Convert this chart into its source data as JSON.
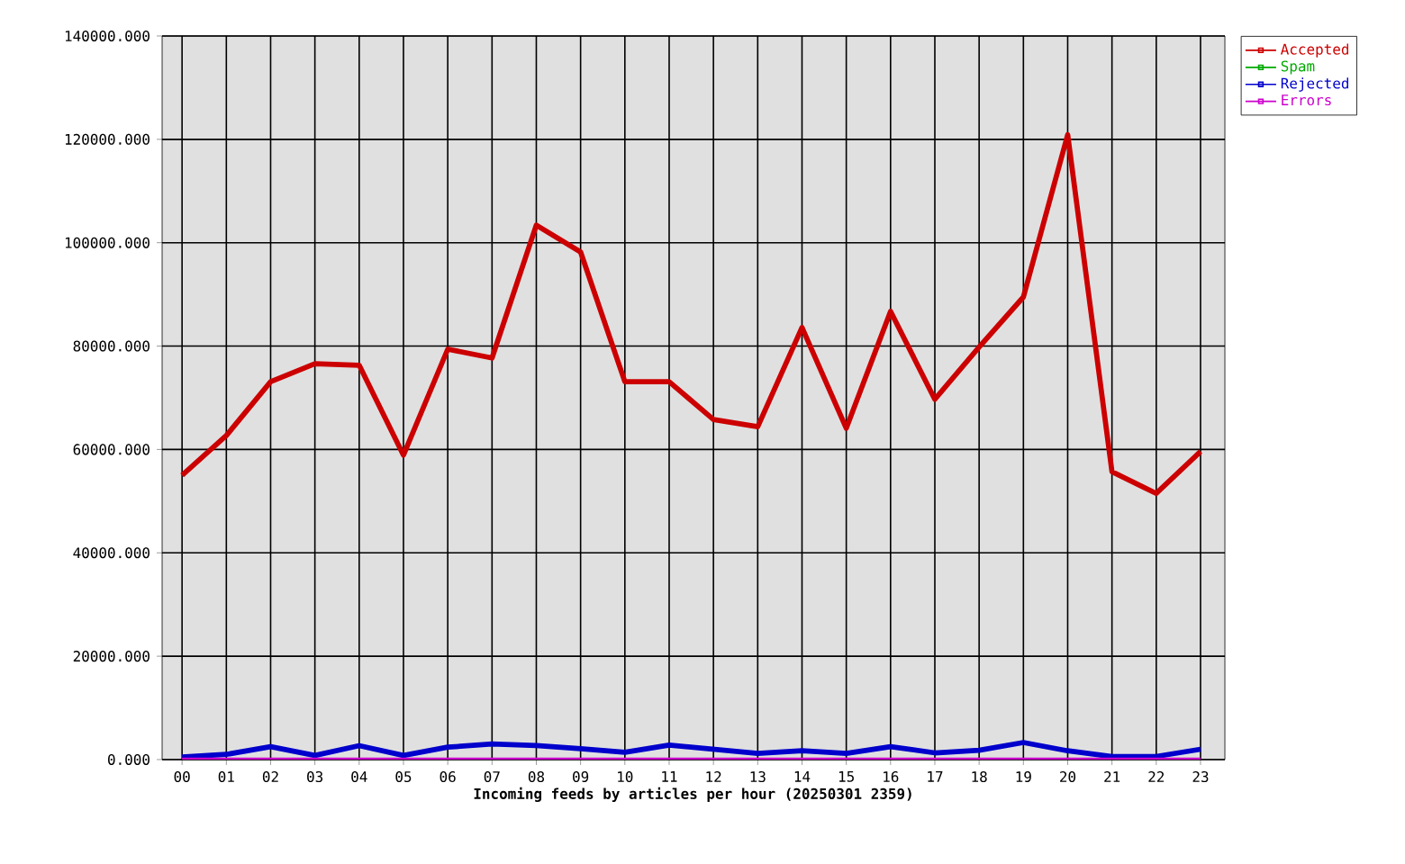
{
  "chart_data": {
    "type": "line",
    "xlabel": "Incoming feeds by articles per hour (20250301 2359)",
    "categories": [
      "00",
      "01",
      "02",
      "03",
      "04",
      "05",
      "06",
      "07",
      "08",
      "09",
      "10",
      "11",
      "12",
      "13",
      "14",
      "15",
      "16",
      "17",
      "18",
      "19",
      "20",
      "21",
      "22",
      "23"
    ],
    "series": [
      {
        "name": "Accepted",
        "color": "#cc0000",
        "values": [
          55000,
          62700,
          73100,
          76600,
          76300,
          58900,
          79400,
          77700,
          103400,
          98200,
          73100,
          73100,
          65800,
          64400,
          83600,
          64100,
          86700,
          69700,
          79800,
          89500,
          120900,
          55700,
          51500,
          59600
        ]
      },
      {
        "name": "Spam",
        "color": "#00aa00",
        "values": [
          null,
          null,
          null,
          null,
          null,
          null,
          null,
          null,
          null,
          null,
          null,
          null,
          null,
          null,
          null,
          null,
          null,
          null,
          null,
          null,
          null,
          null,
          null,
          null
        ]
      },
      {
        "name": "Rejected",
        "color": "#0000cc",
        "values": [
          500,
          1000,
          2500,
          800,
          2700,
          800,
          2400,
          3000,
          2700,
          2100,
          1400,
          2800,
          2000,
          1200,
          1700,
          1200,
          2500,
          1300,
          1800,
          3300,
          1700,
          600,
          600,
          2000
        ]
      },
      {
        "name": "Errors",
        "color": "#cc00cc",
        "values": [
          0,
          0,
          0,
          0,
          0,
          0,
          0,
          0,
          0,
          0,
          0,
          0,
          0,
          0,
          0,
          0,
          0,
          0,
          0,
          0,
          0,
          0,
          0,
          0
        ]
      }
    ],
    "ylim": [
      0,
      140000
    ],
    "yticks": [
      {
        "value": 0,
        "label": "0.000"
      },
      {
        "value": 20000,
        "label": "20000.000"
      },
      {
        "value": 40000,
        "label": "40000.000"
      },
      {
        "value": 60000,
        "label": "60000.000"
      },
      {
        "value": 80000,
        "label": "80000.000"
      },
      {
        "value": 100000,
        "label": "100000.000"
      },
      {
        "value": 120000,
        "label": "120000.000"
      },
      {
        "value": 140000,
        "label": "140000.000"
      }
    ],
    "grid": true,
    "legend": "right",
    "line_style": "solid"
  }
}
